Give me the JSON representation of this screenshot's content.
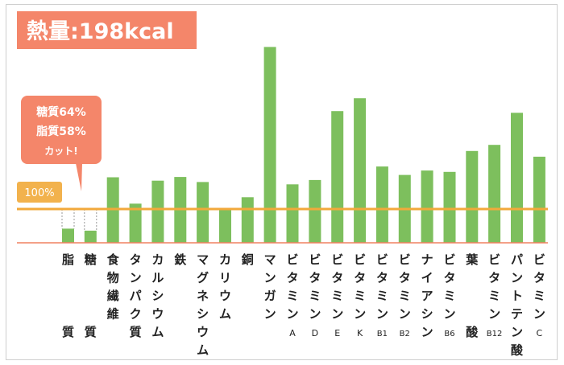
{
  "header_badge": {
    "text": "熱量:198kcal"
  },
  "callout": {
    "line1": "糖質64%",
    "line2": "脂質58%",
    "line3": "カット!"
  },
  "baseline": {
    "label": "100%"
  },
  "colors": {
    "bar": "#7dbf5d",
    "badge_bg": "#f4866a",
    "callout_bg": "#f4866a",
    "baseline_line": "#f2a93b",
    "baseline_label_bg": "#f2b24d",
    "axis": "#f08060"
  },
  "chart_data": {
    "type": "bar",
    "title": "熱量:198kcal",
    "y_unit": "%",
    "ylim": [
      0,
      580
    ],
    "grid": false,
    "reference_line": 100,
    "categories": [
      {
        "name": "脂質",
        "label": [
          "脂",
          "",
          "",
          "",
          "質"
        ]
      },
      {
        "name": "糖質",
        "label": [
          "糖",
          "",
          "",
          "",
          "質"
        ]
      },
      {
        "name": "食物繊維",
        "label": [
          "食",
          "物",
          "繊",
          "維"
        ]
      },
      {
        "name": "タンパク質",
        "label": [
          "タ",
          "ン",
          "パ",
          "ク",
          "質"
        ]
      },
      {
        "name": "カルシウム",
        "label": [
          "カ",
          "ル",
          "シ",
          "ウ",
          "ム"
        ]
      },
      {
        "name": "鉄",
        "label": [
          "鉄"
        ]
      },
      {
        "name": "マグネシウム",
        "label": [
          "マ",
          "グ",
          "ネ",
          "シ",
          "ウ",
          "ム"
        ]
      },
      {
        "name": "カリウム",
        "label": [
          "カ",
          "リ",
          "ウ",
          "ム"
        ]
      },
      {
        "name": "銅",
        "label": [
          "銅"
        ]
      },
      {
        "name": "マンガン",
        "label": [
          "マ",
          "ン",
          "ガ",
          "ン"
        ]
      },
      {
        "name": "ビタミンA",
        "label": [
          "ビ",
          "タ",
          "ミ",
          "ン",
          "A"
        ]
      },
      {
        "name": "ビタミンD",
        "label": [
          "ビ",
          "タ",
          "ミ",
          "ン",
          "D"
        ]
      },
      {
        "name": "ビタミンE",
        "label": [
          "ビ",
          "タ",
          "ミ",
          "ン",
          "E"
        ]
      },
      {
        "name": "ビタミンK",
        "label": [
          "ビ",
          "タ",
          "ミ",
          "ン",
          "K"
        ]
      },
      {
        "name": "ビタミンB1",
        "label": [
          "ビ",
          "タ",
          "ミ",
          "ン",
          "B1"
        ]
      },
      {
        "name": "ビタミンB2",
        "label": [
          "ビ",
          "タ",
          "ミ",
          "ン",
          "B2"
        ]
      },
      {
        "name": "ナイアシン",
        "label": [
          "ナ",
          "イ",
          "ア",
          "シ",
          "ン"
        ]
      },
      {
        "name": "ビタミンB6",
        "label": [
          "ビ",
          "タ",
          "ミ",
          "ン",
          "B6"
        ]
      },
      {
        "name": "葉酸",
        "label": [
          "葉",
          "",
          "",
          "",
          "酸"
        ]
      },
      {
        "name": "ビタミンB12",
        "label": [
          "ビ",
          "タ",
          "ミ",
          "ン",
          "B12"
        ]
      },
      {
        "name": "パントテン酸",
        "label": [
          "パ",
          "ン",
          "ト",
          "テ",
          "ン",
          "酸"
        ]
      },
      {
        "name": "ビタミンC",
        "label": [
          "ビ",
          "タ",
          "ミ",
          "ン",
          "C"
        ]
      }
    ],
    "values": [
      42,
      36,
      194,
      116,
      184,
      195,
      180,
      98,
      135,
      580,
      173,
      186,
      390,
      428,
      226,
      201,
      214,
      210,
      272,
      290,
      385,
      255
    ]
  }
}
